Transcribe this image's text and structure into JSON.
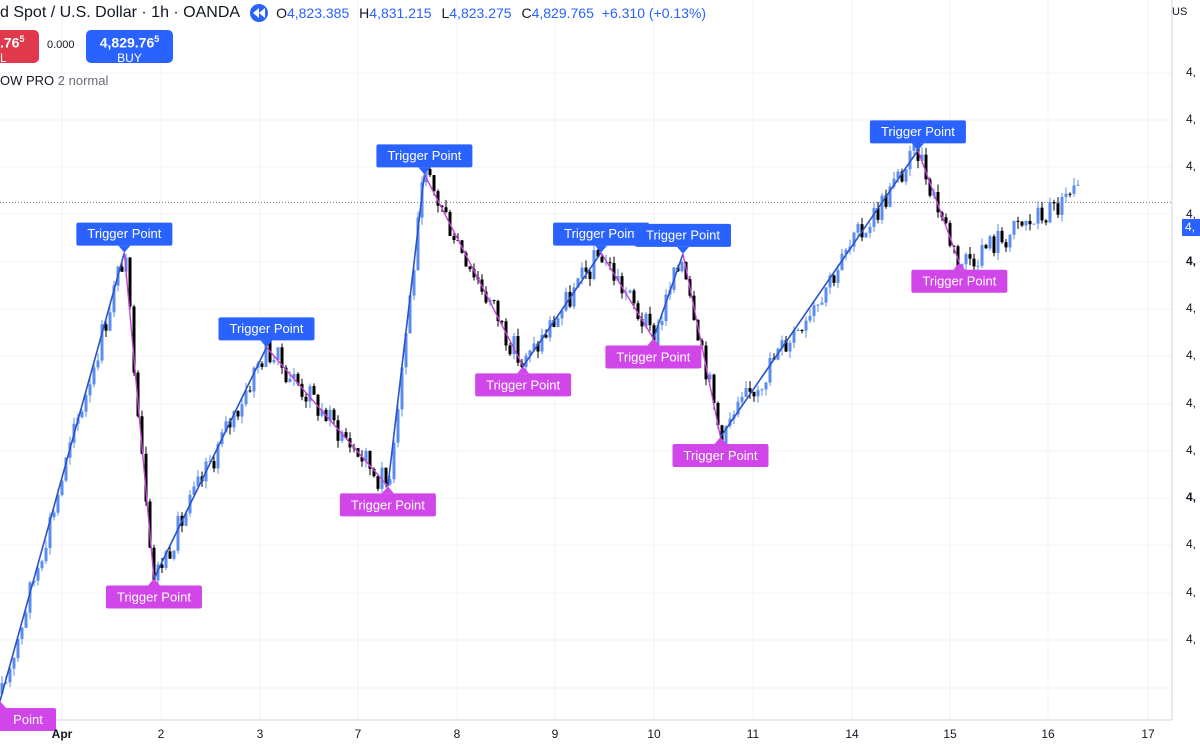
{
  "header": {
    "symbol_title": "d Spot / U.S. Dollar · 1h · OANDA",
    "ohlc": [
      {
        "k": "O",
        "v": "4,823.385"
      },
      {
        "k": "H",
        "v": "4,831.215"
      },
      {
        "k": "L",
        "v": "4,823.275"
      },
      {
        "k": "C",
        "v": "4,829.765"
      }
    ],
    "change": "+6.310 (+0.13%)"
  },
  "trade": {
    "sell_price": ".76",
    "sell_price_sup": "5",
    "sell_label": "L",
    "spread": "0.000",
    "buy_price": "4,829.76",
    "buy_price_sup": "5",
    "buy_label": "BUY"
  },
  "indicator": {
    "name": "OW PRO",
    "params": "2 normal"
  },
  "price_axis": {
    "currency": "US",
    "labels": [
      "4,",
      "4,",
      "4,",
      "4,",
      "4,",
      "4,",
      "4,",
      "4,",
      "4,",
      "4,",
      "4,",
      "4,",
      "4,"
    ],
    "current_price_tag": "4,"
  },
  "colors": {
    "up_candle": "#5b8df0",
    "down_candle": "#000000",
    "up_zig": "#2a52c9",
    "down_zig": "#c243d6",
    "top_marker": "#2962ff",
    "bottom_marker": "#d146e8"
  },
  "chart_data": {
    "type": "candlestick",
    "x_axis_labels": [
      "Apr",
      "2",
      "3",
      "7",
      "8",
      "9",
      "10",
      "11",
      "14",
      "15",
      "16",
      "17"
    ],
    "y_range": [
      4420,
      4990
    ],
    "current_price": 4829.765,
    "markers": [
      {
        "text": "Point",
        "kind": "bottom",
        "x": 0.0,
        "y": 4435
      },
      {
        "text": "Trigger Point",
        "kind": "top",
        "x": 1.26,
        "y": 4790
      },
      {
        "text": "Trigger Point",
        "kind": "bottom",
        "x": 1.56,
        "y": 4532
      },
      {
        "text": "Trigger Point",
        "kind": "top",
        "x": 2.7,
        "y": 4715
      },
      {
        "text": "Trigger Point",
        "kind": "bottom",
        "x": 3.93,
        "y": 4605
      },
      {
        "text": "Trigger Point",
        "kind": "top",
        "x": 4.3,
        "y": 4852
      },
      {
        "text": "Trigger Point",
        "kind": "bottom",
        "x": 5.3,
        "y": 4700
      },
      {
        "text": "Trigger Point",
        "kind": "top",
        "x": 6.09,
        "y": 4790
      },
      {
        "text": "Trigger Point",
        "kind": "top",
        "x": 6.92,
        "y": 4789
      },
      {
        "text": "Trigger Point",
        "kind": "bottom",
        "x": 6.62,
        "y": 4722
      },
      {
        "text": "Trigger Point",
        "kind": "bottom",
        "x": 7.3,
        "y": 4644
      },
      {
        "text": "Trigger Point",
        "kind": "top",
        "x": 9.3,
        "y": 4871
      },
      {
        "text": "Trigger Point",
        "kind": "bottom",
        "x": 9.72,
        "y": 4782
      }
    ],
    "zigzag": [
      {
        "x": 0.0,
        "y": 4435
      },
      {
        "x": 1.26,
        "y": 4790
      },
      {
        "x": 1.56,
        "y": 4532
      },
      {
        "x": 2.7,
        "y": 4715
      },
      {
        "x": 3.93,
        "y": 4605
      },
      {
        "x": 4.3,
        "y": 4852
      },
      {
        "x": 5.3,
        "y": 4700
      },
      {
        "x": 6.09,
        "y": 4790
      },
      {
        "x": 6.62,
        "y": 4722
      },
      {
        "x": 6.92,
        "y": 4789
      },
      {
        "x": 7.3,
        "y": 4644
      },
      {
        "x": 9.3,
        "y": 4871
      },
      {
        "x": 9.72,
        "y": 4782
      }
    ],
    "grid": true
  }
}
